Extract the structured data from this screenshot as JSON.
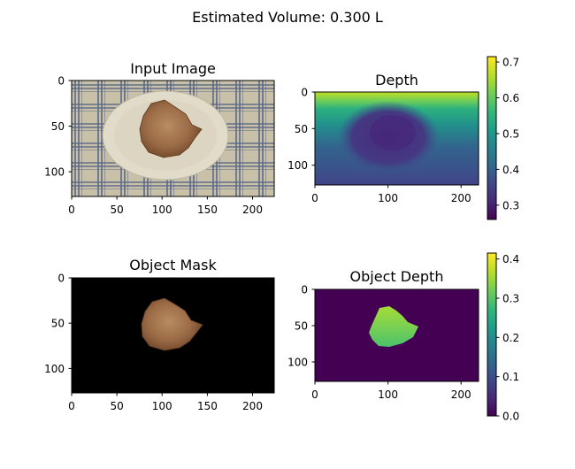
{
  "suptitle": "Estimated Volume: 0.300 L",
  "colors": {
    "viridis": [
      "#440154",
      "#482878",
      "#3e4989",
      "#31688e",
      "#26828e",
      "#1f9e89",
      "#35b779",
      "#6ece58",
      "#b5de2b",
      "#fde725"
    ],
    "plate": "#ddd6c3",
    "tablecloth": "#c9c0a8",
    "tablecloth_stripe": "#5c6a86",
    "food": "#9a6a45",
    "mask_background": "#000000",
    "depth_background": "#440154",
    "object_depth_fill": "#5ac864"
  },
  "chart_data": [
    {
      "id": "input_image",
      "type": "image",
      "title": "Input Image",
      "xlim": [
        0,
        224
      ],
      "ylim": [
        0,
        127
      ],
      "xticks": [
        "0",
        "50",
        "100",
        "150",
        "200"
      ],
      "yticks": [
        "0",
        "50",
        "100"
      ],
      "colorbar": null
    },
    {
      "id": "depth",
      "type": "heatmap",
      "title": "Depth",
      "xlim": [
        0,
        224
      ],
      "ylim": [
        0,
        127
      ],
      "xticks": [
        "0",
        "100",
        "200"
      ],
      "yticks": [
        "0",
        "50",
        "100"
      ],
      "colormap": "viridis",
      "colorbar": {
        "min": 0.26,
        "max": 0.715,
        "ticks": [
          "0.3",
          "0.4",
          "0.5",
          "0.6",
          "0.7"
        ]
      }
    },
    {
      "id": "object_mask",
      "type": "image",
      "title": "Object Mask",
      "xlim": [
        0,
        224
      ],
      "ylim": [
        0,
        127
      ],
      "xticks": [
        "0",
        "50",
        "100",
        "150",
        "200"
      ],
      "yticks": [
        "0",
        "50",
        "100"
      ],
      "colorbar": null
    },
    {
      "id": "object_depth",
      "type": "heatmap",
      "title": "Object Depth",
      "xlim": [
        0,
        224
      ],
      "ylim": [
        0,
        127
      ],
      "xticks": [
        "0",
        "100",
        "200"
      ],
      "yticks": [
        "0",
        "50",
        "100"
      ],
      "colormap": "viridis",
      "colorbar": {
        "min": 0.0,
        "max": 0.415,
        "ticks": [
          "0.0",
          "0.1",
          "0.2",
          "0.3",
          "0.4"
        ]
      }
    }
  ]
}
